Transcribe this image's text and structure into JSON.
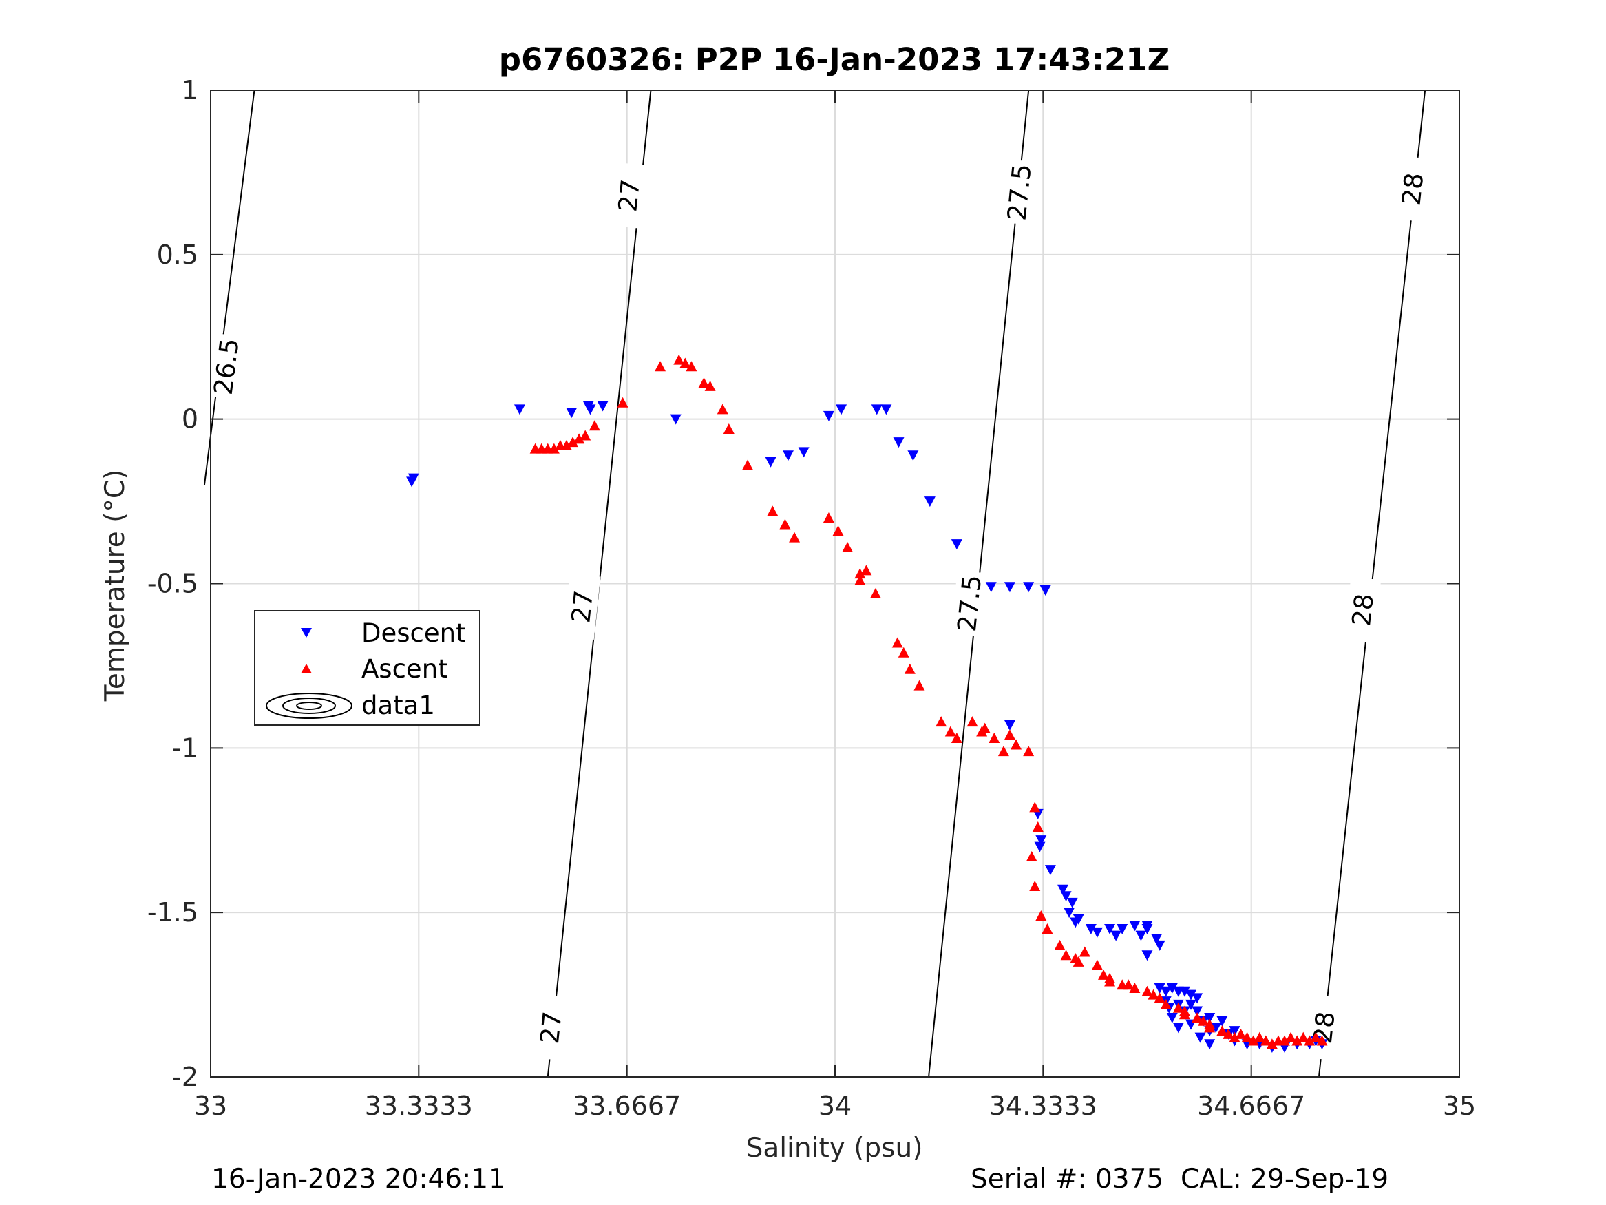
{
  "chart_data": {
    "type": "scatter",
    "title": "p6760326: P2P 16-Jan-2023 17:43:21Z",
    "xlabel": "Salinity (psu)",
    "ylabel": "Temperature (°C)",
    "xlim": [
      33,
      35
    ],
    "ylim": [
      -2,
      1
    ],
    "xticks": [
      33,
      33.3333,
      33.6667,
      34,
      34.3333,
      34.6667,
      35
    ],
    "xtick_labels": [
      "33",
      "33.3333",
      "33.6667",
      "34",
      "34.3333",
      "34.6667",
      "35"
    ],
    "yticks": [
      1,
      0.5,
      0,
      -0.5,
      -1,
      -1.5,
      -2
    ],
    "ytick_labels": [
      "1",
      "0.5",
      "0",
      "-0.5",
      "-1",
      "-1.5",
      "-2"
    ],
    "grid": true,
    "legend_position": "left",
    "legend": [
      {
        "label": "Descent",
        "marker": "triangle-down",
        "color": "#0000ff"
      },
      {
        "label": "Ascent",
        "marker": "triangle-up",
        "color": "#ff0000"
      },
      {
        "label": "data1",
        "marker": "contour",
        "color": "#000000"
      }
    ],
    "series": [
      {
        "name": "Descent",
        "color": "#0000ff",
        "marker": "triangle-down",
        "points": [
          [
            33.322,
            -0.19
          ],
          [
            33.325,
            -0.18
          ],
          [
            33.495,
            0.03
          ],
          [
            33.608,
            0.03
          ],
          [
            33.605,
            0.04
          ],
          [
            33.628,
            0.04
          ],
          [
            33.578,
            0.02
          ],
          [
            33.745,
            0.0
          ],
          [
            33.897,
            -0.13
          ],
          [
            33.925,
            -0.11
          ],
          [
            33.95,
            -0.1
          ],
          [
            33.99,
            0.01
          ],
          [
            34.01,
            0.03
          ],
          [
            34.067,
            0.03
          ],
          [
            34.082,
            0.03
          ],
          [
            34.102,
            -0.07
          ],
          [
            34.125,
            -0.11
          ],
          [
            34.152,
            -0.25
          ],
          [
            34.195,
            -0.38
          ],
          [
            34.25,
            -0.51
          ],
          [
            34.28,
            -0.51
          ],
          [
            34.31,
            -0.51
          ],
          [
            34.337,
            -0.52
          ],
          [
            34.28,
            -0.93
          ],
          [
            34.325,
            -1.2
          ],
          [
            34.33,
            -1.28
          ],
          [
            34.328,
            -1.3
          ],
          [
            34.345,
            -1.37
          ],
          [
            34.365,
            -1.43
          ],
          [
            34.37,
            -1.45
          ],
          [
            34.38,
            -1.47
          ],
          [
            34.375,
            -1.5
          ],
          [
            34.39,
            -1.52
          ],
          [
            34.385,
            -1.53
          ],
          [
            34.41,
            -1.55
          ],
          [
            34.42,
            -1.56
          ],
          [
            34.44,
            -1.55
          ],
          [
            34.46,
            -1.55
          ],
          [
            34.48,
            -1.54
          ],
          [
            34.5,
            -1.55
          ],
          [
            34.45,
            -1.57
          ],
          [
            34.49,
            -1.57
          ],
          [
            34.515,
            -1.58
          ],
          [
            34.52,
            -1.6
          ],
          [
            34.5,
            -1.63
          ],
          [
            34.5,
            -1.54
          ],
          [
            34.52,
            -1.73
          ],
          [
            34.53,
            -1.74
          ],
          [
            34.54,
            -1.73
          ],
          [
            34.55,
            -1.74
          ],
          [
            34.56,
            -1.74
          ],
          [
            34.57,
            -1.75
          ],
          [
            34.58,
            -1.76
          ],
          [
            34.55,
            -1.78
          ],
          [
            34.56,
            -1.8
          ],
          [
            34.54,
            -1.82
          ],
          [
            34.55,
            -1.85
          ],
          [
            34.57,
            -1.84
          ],
          [
            34.58,
            -1.8
          ],
          [
            34.59,
            -1.83
          ],
          [
            34.6,
            -1.86
          ],
          [
            34.585,
            -1.88
          ],
          [
            34.6,
            -1.9
          ],
          [
            34.61,
            -1.85
          ],
          [
            34.62,
            -1.83
          ],
          [
            34.63,
            -1.87
          ],
          [
            34.64,
            -1.89
          ],
          [
            34.66,
            -1.9
          ],
          [
            34.68,
            -1.9
          ],
          [
            34.7,
            -1.91
          ],
          [
            34.72,
            -1.91
          ],
          [
            34.74,
            -1.9
          ],
          [
            34.76,
            -1.9
          ],
          [
            34.78,
            -1.9
          ],
          [
            34.77,
            -1.89
          ],
          [
            34.53,
            -1.77
          ],
          [
            34.535,
            -1.79
          ],
          [
            34.57,
            -1.78
          ],
          [
            34.6,
            -1.82
          ],
          [
            34.64,
            -1.86
          ]
        ]
      },
      {
        "name": "Ascent",
        "color": "#ff0000",
        "marker": "triangle-up",
        "points": [
          [
            33.52,
            -0.09
          ],
          [
            33.53,
            -0.09
          ],
          [
            33.54,
            -0.09
          ],
          [
            33.55,
            -0.09
          ],
          [
            33.56,
            -0.08
          ],
          [
            33.57,
            -0.08
          ],
          [
            33.58,
            -0.07
          ],
          [
            33.59,
            -0.06
          ],
          [
            33.6,
            -0.05
          ],
          [
            33.615,
            -0.02
          ],
          [
            33.66,
            0.05
          ],
          [
            33.72,
            0.16
          ],
          [
            33.75,
            0.18
          ],
          [
            33.76,
            0.17
          ],
          [
            33.77,
            0.16
          ],
          [
            33.79,
            0.11
          ],
          [
            33.8,
            0.1
          ],
          [
            33.82,
            0.03
          ],
          [
            33.83,
            -0.03
          ],
          [
            33.86,
            -0.14
          ],
          [
            33.9,
            -0.28
          ],
          [
            33.92,
            -0.32
          ],
          [
            33.935,
            -0.36
          ],
          [
            33.99,
            -0.3
          ],
          [
            34.005,
            -0.34
          ],
          [
            34.02,
            -0.39
          ],
          [
            34.04,
            -0.47
          ],
          [
            34.05,
            -0.46
          ],
          [
            34.04,
            -0.49
          ],
          [
            34.065,
            -0.53
          ],
          [
            34.1,
            -0.68
          ],
          [
            34.11,
            -0.71
          ],
          [
            34.12,
            -0.76
          ],
          [
            34.135,
            -0.81
          ],
          [
            34.17,
            -0.92
          ],
          [
            34.185,
            -0.95
          ],
          [
            34.195,
            -0.97
          ],
          [
            34.22,
            -0.92
          ],
          [
            34.235,
            -0.95
          ],
          [
            34.24,
            -0.94
          ],
          [
            34.255,
            -0.97
          ],
          [
            34.27,
            -1.01
          ],
          [
            34.28,
            -0.96
          ],
          [
            34.29,
            -0.99
          ],
          [
            34.31,
            -1.01
          ],
          [
            34.32,
            -1.18
          ],
          [
            34.325,
            -1.24
          ],
          [
            34.315,
            -1.33
          ],
          [
            34.32,
            -1.42
          ],
          [
            34.33,
            -1.51
          ],
          [
            34.34,
            -1.55
          ],
          [
            34.36,
            -1.6
          ],
          [
            34.37,
            -1.63
          ],
          [
            34.385,
            -1.64
          ],
          [
            34.39,
            -1.65
          ],
          [
            34.4,
            -1.62
          ],
          [
            34.42,
            -1.66
          ],
          [
            34.43,
            -1.69
          ],
          [
            34.44,
            -1.7
          ],
          [
            34.46,
            -1.72
          ],
          [
            34.47,
            -1.72
          ],
          [
            34.48,
            -1.73
          ],
          [
            34.5,
            -1.74
          ],
          [
            34.51,
            -1.75
          ],
          [
            34.52,
            -1.76
          ],
          [
            34.53,
            -1.78
          ],
          [
            34.55,
            -1.79
          ],
          [
            34.56,
            -1.8
          ],
          [
            34.58,
            -1.82
          ],
          [
            34.59,
            -1.83
          ],
          [
            34.6,
            -1.85
          ],
          [
            34.62,
            -1.86
          ],
          [
            34.63,
            -1.87
          ],
          [
            34.64,
            -1.88
          ],
          [
            34.65,
            -1.87
          ],
          [
            34.66,
            -1.88
          ],
          [
            34.67,
            -1.89
          ],
          [
            34.68,
            -1.88
          ],
          [
            34.69,
            -1.89
          ],
          [
            34.7,
            -1.9
          ],
          [
            34.71,
            -1.89
          ],
          [
            34.72,
            -1.89
          ],
          [
            34.73,
            -1.88
          ],
          [
            34.74,
            -1.89
          ],
          [
            34.75,
            -1.88
          ],
          [
            34.76,
            -1.89
          ],
          [
            34.77,
            -1.88
          ],
          [
            34.78,
            -1.89
          ],
          [
            34.6,
            -1.84
          ],
          [
            34.56,
            -1.81
          ],
          [
            34.44,
            -1.71
          ]
        ]
      }
    ],
    "isopycnals": [
      {
        "label": "26.5",
        "points": [
          [
            33.07,
            1.0
          ],
          [
            32.99,
            -0.2
          ]
        ],
        "label_at": [
          [
            33.025,
            0.16
          ]
        ]
      },
      {
        "label": "27",
        "points": [
          [
            33.705,
            1.0
          ],
          [
            33.54,
            -2.0
          ]
        ],
        "label_at": [
          [
            33.67,
            0.68
          ],
          [
            33.595,
            -0.57
          ],
          [
            33.545,
            -1.85
          ]
        ]
      },
      {
        "label": "27.5",
        "points": [
          [
            34.31,
            1.0
          ],
          [
            34.15,
            -2.0
          ]
        ],
        "label_at": [
          [
            34.295,
            0.69
          ],
          [
            34.215,
            -0.56
          ]
        ]
      },
      {
        "label": "28",
        "points": [
          [
            34.945,
            1.0
          ],
          [
            34.775,
            -2.0
          ]
        ],
        "label_at": [
          [
            34.925,
            0.7
          ],
          [
            34.845,
            -0.58
          ],
          [
            34.783,
            -1.85
          ]
        ]
      }
    ]
  },
  "footer": {
    "timestamp": "16-Jan-2023 20:46:11",
    "serial": "Serial #: 0375  CAL: 29-Sep-19"
  }
}
